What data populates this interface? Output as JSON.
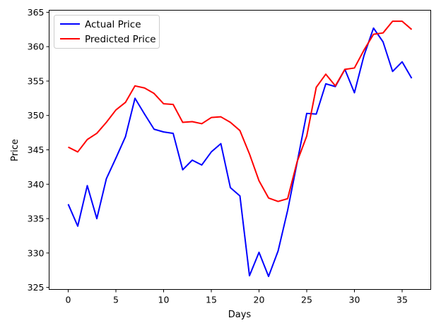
{
  "chart_data": {
    "type": "line",
    "title": "",
    "xlabel": "Days",
    "ylabel": "Price",
    "xlim": [
      -2,
      38
    ],
    "ylim": [
      324.7,
      365.3
    ],
    "xticks": [
      0,
      5,
      10,
      15,
      20,
      25,
      30,
      35
    ],
    "yticks": [
      325,
      330,
      335,
      340,
      345,
      350,
      355,
      360,
      365
    ],
    "grid": false,
    "legend_position": "upper left",
    "x": [
      0,
      1,
      2,
      3,
      4,
      5,
      6,
      7,
      8,
      9,
      10,
      11,
      12,
      13,
      14,
      15,
      16,
      17,
      18,
      19,
      20,
      21,
      22,
      23,
      24,
      25,
      26,
      27,
      28,
      29,
      30,
      31,
      32,
      33,
      34,
      35,
      36
    ],
    "series": [
      {
        "name": "Actual Price",
        "color": "#0000ff",
        "values": [
          337.1,
          333.9,
          339.8,
          335.0,
          340.8,
          343.8,
          346.9,
          352.5,
          350.2,
          348.0,
          347.6,
          347.4,
          342.1,
          343.5,
          342.8,
          344.7,
          345.9,
          339.5,
          338.3,
          326.7,
          330.1,
          326.6,
          330.3,
          336.2,
          343.2,
          350.3,
          350.2,
          354.6,
          354.2,
          356.7,
          353.3,
          358.7,
          362.7,
          360.7,
          356.4,
          357.8,
          355.4
        ]
      },
      {
        "name": "Predicted Price",
        "color": "#ff0000",
        "values": [
          345.4,
          344.7,
          346.5,
          347.4,
          349.0,
          350.8,
          351.9,
          354.3,
          354.0,
          353.2,
          351.7,
          351.6,
          349.0,
          349.1,
          348.8,
          349.7,
          349.8,
          349.0,
          347.8,
          344.4,
          340.5,
          338.0,
          337.5,
          337.9,
          343.3,
          347.0,
          354.1,
          356.0,
          354.3,
          356.7,
          356.9,
          359.5,
          361.8,
          362.0,
          363.7,
          363.7,
          362.5
        ]
      }
    ]
  }
}
